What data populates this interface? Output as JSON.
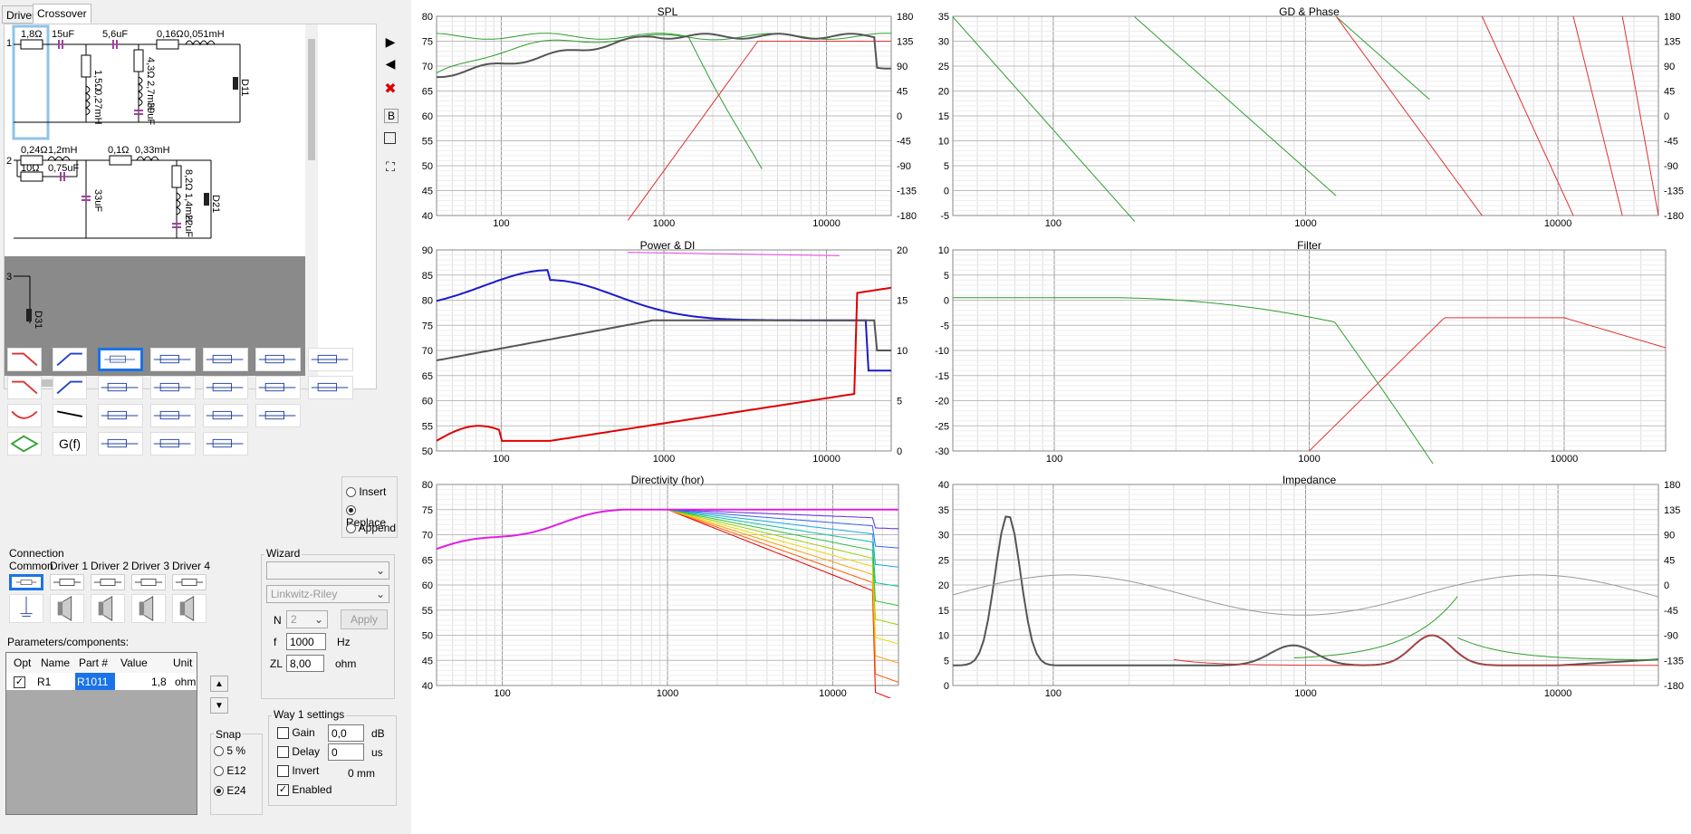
{
  "tabs": [
    "Drivers",
    "Crossover"
  ],
  "schematic": {
    "way1": {
      "number": "1",
      "parts": [
        "1,8Ω",
        "15uF",
        "5,6uF",
        "0,16Ω",
        "0,051mH",
        "1,5Ω",
        "0,27mH",
        "4,3Ω",
        "2,7mH",
        "39uF"
      ],
      "driver": "D11"
    },
    "way2": {
      "number": "2",
      "parts": [
        "0,24Ω",
        "1,2mH",
        "10Ω",
        "0,75uF",
        "0,1Ω",
        "0,33mH",
        "33uF",
        "8,2Ω",
        "1,4mH",
        "22uF"
      ],
      "driver": "D21"
    },
    "way3": {
      "number": "3",
      "driver": "D31"
    }
  },
  "toolbar": {
    "play": "▶",
    "back": "◀",
    "delete": "✖",
    "b_label": "B"
  },
  "mode": {
    "insert": "Insert",
    "replace": "Replace",
    "append": "Append",
    "selected": "Replace"
  },
  "gf_label": "G(f)",
  "connection": {
    "title": "Connection",
    "tabs": [
      "Common",
      "Driver 1",
      "Driver 2",
      "Driver 3",
      "Driver 4"
    ]
  },
  "wizard": {
    "title": "Wizard",
    "type": "",
    "filter": "Linkwitz-Riley",
    "n_label": "N",
    "n": "2",
    "apply": "Apply",
    "f_label": "f",
    "f": "1000",
    "f_unit": "Hz",
    "zl_label": "ZL",
    "zl": "8,00",
    "zl_unit": "ohm"
  },
  "params": {
    "title": "Parameters/components:",
    "headers": [
      "Opt",
      "Name",
      "Part #",
      "Value",
      "Unit"
    ],
    "row": {
      "name": "R1",
      "part": "R1011",
      "value": "1,8",
      "unit": "ohm"
    }
  },
  "snap": {
    "title": "Snap",
    "options": [
      "5 %",
      "E12",
      "E24"
    ],
    "selected": "E24"
  },
  "way_settings": {
    "title": "Way 1 settings",
    "gain_label": "Gain",
    "gain": "0,0",
    "gain_unit": "dB",
    "delay_label": "Delay",
    "delay": "0",
    "delay_unit": "us",
    "invert_label": "Invert",
    "invert_note": "0 mm",
    "enabled_label": "Enabled"
  },
  "charts": {
    "spl": {
      "title": "SPL",
      "yleft": [
        "80",
        "75",
        "70",
        "65",
        "60",
        "55",
        "50",
        "45",
        "40"
      ],
      "yright": [
        "180",
        "135",
        "90",
        "45",
        "0",
        "-45",
        "-90",
        "-135",
        "-180"
      ],
      "xticks": [
        "100",
        "1000",
        "10000"
      ]
    },
    "gdphase": {
      "title": "GD & Phase",
      "yleft": [
        "35",
        "30",
        "25",
        "20",
        "15",
        "10",
        "5",
        "0",
        "-5"
      ],
      "yright": [
        "180",
        "135",
        "90",
        "45",
        "0",
        "-45",
        "-90",
        "-135",
        "-180"
      ],
      "xticks": [
        "100",
        "1000",
        "10000"
      ]
    },
    "power": {
      "title": "Power & DI",
      "yleft": [
        "90",
        "85",
        "80",
        "75",
        "70",
        "65",
        "60",
        "55",
        "50"
      ],
      "yright": [
        "20",
        "15",
        "10",
        "5",
        "0"
      ],
      "xticks": [
        "100",
        "1000",
        "10000"
      ]
    },
    "filter": {
      "title": "Filter",
      "yleft": [
        "10",
        "5",
        "0",
        "-5",
        "-10",
        "-15",
        "-20",
        "-25",
        "-30"
      ],
      "xticks": [
        "100",
        "1000",
        "10000"
      ]
    },
    "directivity": {
      "title": "Directivity (hor)",
      "yleft": [
        "80",
        "75",
        "70",
        "65",
        "60",
        "55",
        "50",
        "45",
        "40"
      ],
      "xticks": [
        "100",
        "1000",
        "10000"
      ]
    },
    "impedance": {
      "title": "Impedance",
      "yleft": [
        "40",
        "35",
        "30",
        "25",
        "20",
        "15",
        "10",
        "5",
        "0"
      ],
      "yright": [
        "180",
        "135",
        "90",
        "45",
        "0",
        "-45",
        "-90",
        "-135",
        "-180"
      ],
      "xticks": [
        "100",
        "1000",
        "10000"
      ]
    }
  },
  "colors": {
    "total": "#555555",
    "woofer": "#2e9e2e",
    "tweeter": "#e33030",
    "power": "#1a1ad0",
    "di": "#e00000",
    "di_target": "#e040e0",
    "selection": "#1a73e8"
  }
}
